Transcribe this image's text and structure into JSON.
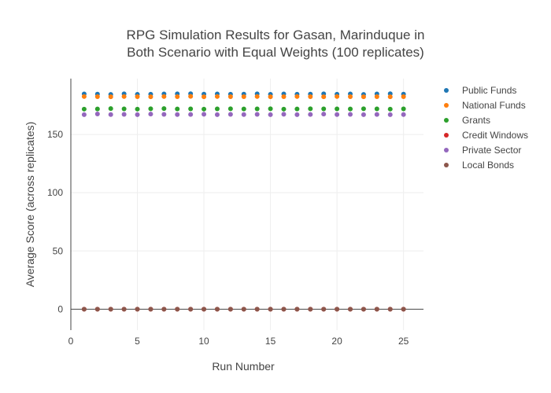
{
  "chart_data": {
    "type": "scatter",
    "title_lines": [
      "RPG Simulation Results for Gasan, Marinduque in",
      "Both Scenario with Equal Weights (100 replicates)"
    ],
    "xlabel": "Run Number",
    "ylabel": "Average Score (across replicates)",
    "xlim": [
      0,
      26.5
    ],
    "ylim": [
      -18,
      198
    ],
    "x_ticks": [
      0,
      5,
      10,
      15,
      20,
      25
    ],
    "y_ticks": [
      0,
      50,
      100,
      150
    ],
    "grid": true,
    "legend_position": "top-right",
    "x": [
      1,
      2,
      3,
      4,
      5,
      6,
      7,
      8,
      9,
      10,
      11,
      12,
      13,
      14,
      15,
      16,
      17,
      18,
      19,
      20,
      21,
      22,
      23,
      24,
      25
    ],
    "series": [
      {
        "name": "Public Funds",
        "color": "#1f77b4",
        "values": [
          184.8,
          184.7,
          184.4,
          184.9,
          184.5,
          184.6,
          184.8,
          184.9,
          185.0,
          184.7,
          184.8,
          184.6,
          184.7,
          184.9,
          184.5,
          184.8,
          184.6,
          184.7,
          184.9,
          184.6,
          184.8,
          184.4,
          184.8,
          185.0,
          184.7
        ]
      },
      {
        "name": "National Funds",
        "color": "#ff7f0e",
        "values": [
          182.6,
          182.5,
          182.4,
          182.6,
          182.5,
          182.4,
          182.6,
          182.5,
          182.7,
          182.4,
          182.6,
          182.5,
          182.5,
          182.6,
          182.4,
          182.5,
          182.6,
          182.5,
          182.4,
          182.6,
          182.5,
          182.4,
          182.5,
          182.4,
          182.5
        ]
      },
      {
        "name": "Grants",
        "color": "#2ca02c",
        "values": [
          171.8,
          171.9,
          172.3,
          172.0,
          171.8,
          172.1,
          172.3,
          171.9,
          172.0,
          171.8,
          172.0,
          172.1,
          171.9,
          172.0,
          172.1,
          171.8,
          171.9,
          172.1,
          172.0,
          172.0,
          171.9,
          172.1,
          172.0,
          171.8,
          172.0
        ]
      },
      {
        "name": "Credit Windows",
        "color": "#d62728",
        "values": [
          0,
          0,
          0,
          0,
          0,
          0,
          0,
          0,
          0,
          0,
          0,
          0,
          0,
          0,
          0,
          0,
          0,
          0,
          0,
          0,
          0,
          0,
          0,
          0,
          0
        ]
      },
      {
        "name": "Private Sector",
        "color": "#9467bd",
        "values": [
          167.0,
          167.6,
          167.1,
          167.3,
          167.0,
          167.5,
          167.3,
          167.1,
          167.2,
          167.4,
          167.0,
          167.3,
          167.1,
          167.3,
          167.0,
          167.4,
          167.0,
          167.2,
          167.5,
          167.1,
          167.3,
          167.0,
          167.2,
          167.0,
          167.1
        ]
      },
      {
        "name": "Local Bonds",
        "color": "#8c564b",
        "values": [
          0,
          0,
          0,
          0,
          0,
          0,
          0,
          0,
          0,
          0,
          0,
          0,
          0,
          0,
          0,
          0,
          0,
          0,
          0,
          0,
          0,
          0,
          0,
          0,
          0
        ]
      }
    ]
  }
}
